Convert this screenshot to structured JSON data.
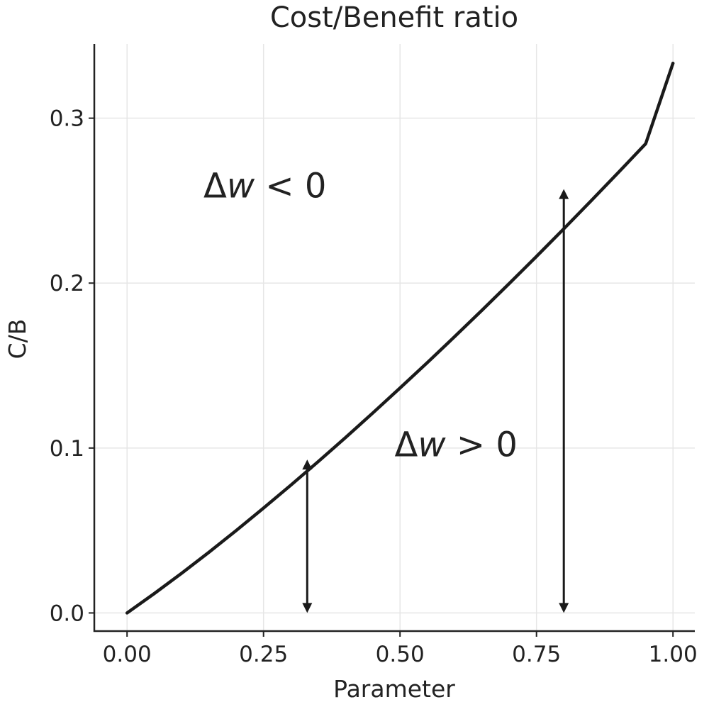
{
  "chart_data": {
    "type": "line",
    "title": "Cost/Benefit ratio",
    "xlabel": "Parameter",
    "ylabel": "C/B",
    "xlim": [
      -0.06,
      1.04
    ],
    "ylim": [
      -0.011,
      0.345
    ],
    "xticks": [
      0.0,
      0.25,
      0.5,
      0.75,
      1.0
    ],
    "xtick_labels": [
      "0.00",
      "0.25",
      "0.50",
      "0.75",
      "1.00"
    ],
    "yticks": [
      0.0,
      0.1,
      0.2,
      0.3
    ],
    "ytick_labels": [
      "0.0",
      "0.1",
      "0.2",
      "0.3"
    ],
    "grid": true,
    "line_color": "#1a1a1a",
    "series": [
      {
        "x": [
          0.0,
          0.05,
          0.1,
          0.15,
          0.2,
          0.25,
          0.3,
          0.35,
          0.4,
          0.45,
          0.5,
          0.55,
          0.6,
          0.65,
          0.7,
          0.75,
          0.8,
          0.85,
          0.9,
          0.95,
          1.0
        ],
        "values": [
          0.0,
          0.0118,
          0.0241,
          0.0368,
          0.05,
          0.0636,
          0.0775,
          0.0917,
          0.1063,
          0.1212,
          0.1364,
          0.1518,
          0.1675,
          0.1835,
          0.1997,
          0.2162,
          0.2329,
          0.2499,
          0.2671,
          0.2845,
          0.3333
        ]
      }
    ],
    "arrows": [
      {
        "x": 0.33,
        "y_from": 0.0,
        "y_to": 0.093
      },
      {
        "x": 0.8,
        "y_from": 0.0,
        "y_to": 0.257
      }
    ],
    "annotations": [
      {
        "prefix": "Δ",
        "var": "w",
        "suffix": " < 0",
        "x": 0.14,
        "y": 0.252
      },
      {
        "prefix": "Δ",
        "var": "w",
        "suffix": " > 0",
        "x": 0.49,
        "y": 0.095
      }
    ]
  }
}
